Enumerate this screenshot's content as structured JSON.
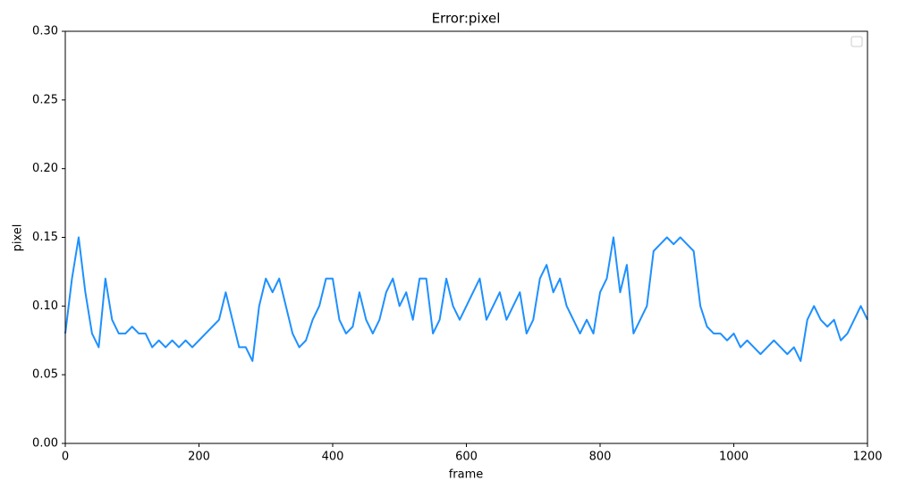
{
  "chart_data": {
    "type": "line",
    "title": "Error:pixel",
    "x_label": "frame",
    "y_label": "pixel",
    "x": [
      0,
      10,
      20,
      30,
      40,
      50,
      60,
      70,
      80,
      90,
      100,
      110,
      120,
      130,
      140,
      150,
      160,
      170,
      180,
      190,
      200,
      210,
      220,
      230,
      240,
      250,
      260,
      270,
      280,
      290,
      300,
      310,
      320,
      330,
      340,
      350,
      360,
      370,
      380,
      390,
      400,
      410,
      420,
      430,
      440,
      450,
      460,
      470,
      480,
      490,
      500,
      510,
      520,
      530,
      540,
      550,
      560,
      570,
      580,
      590,
      600,
      610,
      620,
      630,
      640,
      650,
      660,
      670,
      680,
      690,
      700,
      710,
      720,
      730,
      740,
      750,
      760,
      770,
      780,
      790,
      800,
      810,
      820,
      830,
      840,
      850,
      860,
      870,
      880,
      890,
      900,
      910,
      920,
      930,
      940,
      950,
      960,
      970,
      980,
      990,
      1000,
      1010,
      1020,
      1030,
      1040,
      1050,
      1060,
      1070,
      1080,
      1090,
      1100,
      1110,
      1120,
      1130,
      1140,
      1150,
      1160,
      1170,
      1180,
      1190,
      1200
    ],
    "values": [
      0.08,
      0.12,
      0.15,
      0.11,
      0.08,
      0.07,
      0.12,
      0.09,
      0.08,
      0.08,
      0.085,
      0.08,
      0.08,
      0.07,
      0.075,
      0.07,
      0.075,
      0.07,
      0.075,
      0.07,
      0.075,
      0.08,
      0.085,
      0.09,
      0.11,
      0.09,
      0.07,
      0.07,
      0.06,
      0.1,
      0.12,
      0.11,
      0.12,
      0.1,
      0.08,
      0.07,
      0.075,
      0.09,
      0.1,
      0.12,
      0.12,
      0.09,
      0.08,
      0.085,
      0.11,
      0.09,
      0.08,
      0.09,
      0.11,
      0.12,
      0.1,
      0.11,
      0.09,
      0.12,
      0.12,
      0.08,
      0.09,
      0.12,
      0.1,
      0.09,
      0.1,
      0.11,
      0.12,
      0.09,
      0.1,
      0.11,
      0.09,
      0.1,
      0.11,
      0.08,
      0.09,
      0.12,
      0.13,
      0.11,
      0.12,
      0.1,
      0.09,
      0.08,
      0.09,
      0.08,
      0.11,
      0.12,
      0.15,
      0.11,
      0.13,
      0.08,
      0.09,
      0.1,
      0.14,
      0.145,
      0.15,
      0.145,
      0.15,
      0.145,
      0.14,
      0.1,
      0.085,
      0.08,
      0.08,
      0.075,
      0.08,
      0.07,
      0.075,
      0.07,
      0.065,
      0.07,
      0.075,
      0.07,
      0.065,
      0.07,
      0.06,
      0.09,
      0.1,
      0.09,
      0.085,
      0.09,
      0.075,
      0.08,
      0.09,
      0.1,
      0.09
    ],
    "color": "#1e90ff",
    "xlim": [
      0,
      1200
    ],
    "xticks": [
      0,
      200,
      400,
      600,
      800,
      1000,
      1200
    ],
    "ylim": [
      0,
      0.3
    ],
    "yticks": [
      {
        "value": 0,
        "label": "0.00"
      },
      {
        "value": 0.05,
        "label": "0.05"
      },
      {
        "value": 0.1,
        "label": "0.10"
      },
      {
        "value": 0.15,
        "label": "0.15"
      },
      {
        "value": 0.2,
        "label": "0.20"
      },
      {
        "value": 0.25,
        "label": "0.25"
      },
      {
        "value": 0.3,
        "label": "0.30"
      }
    ]
  }
}
